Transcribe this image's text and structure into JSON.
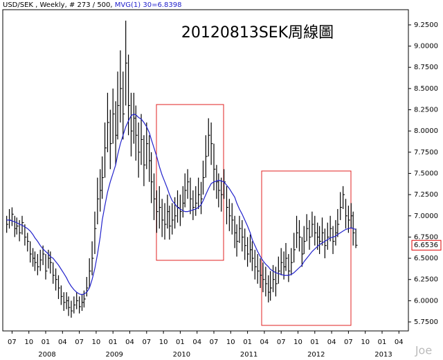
{
  "header": {
    "symbol_text": "USD/SEK , Weekly, # 273 / 500,",
    "ma_text": "MVG(1) 30=6.8398",
    "ma_color": "#2222cc"
  },
  "watermark": "Joe",
  "chart_data": {
    "type": "ohlc",
    "title": "20120813SEK周線圖",
    "x": [
      2007.42,
      2007.46,
      2007.5,
      2007.54,
      2007.57,
      2007.61,
      2007.65,
      2007.69,
      2007.73,
      2007.77,
      2007.81,
      2007.84,
      2007.88,
      2007.92,
      2007.96,
      2008.0,
      2008.04,
      2008.07,
      2008.11,
      2008.15,
      2008.19,
      2008.23,
      2008.27,
      2008.31,
      2008.34,
      2008.38,
      2008.42,
      2008.46,
      2008.5,
      2008.54,
      2008.57,
      2008.61,
      2008.65,
      2008.69,
      2008.73,
      2008.77,
      2008.81,
      2008.84,
      2008.88,
      2008.92,
      2008.96,
      2009.0,
      2009.04,
      2009.07,
      2009.11,
      2009.15,
      2009.19,
      2009.23,
      2009.27,
      2009.31,
      2009.34,
      2009.38,
      2009.42,
      2009.46,
      2009.5,
      2009.54,
      2009.57,
      2009.61,
      2009.65,
      2009.69,
      2009.73,
      2009.77,
      2009.81,
      2009.84,
      2009.88,
      2009.92,
      2009.96,
      2010.0,
      2010.04,
      2010.07,
      2010.11,
      2010.15,
      2010.19,
      2010.23,
      2010.27,
      2010.31,
      2010.34,
      2010.38,
      2010.42,
      2010.46,
      2010.5,
      2010.54,
      2010.57,
      2010.61,
      2010.65,
      2010.69,
      2010.73,
      2010.77,
      2010.81,
      2010.84,
      2010.88,
      2010.92,
      2010.96,
      2011.0,
      2011.04,
      2011.07,
      2011.11,
      2011.15,
      2011.19,
      2011.23,
      2011.27,
      2011.31,
      2011.34,
      2011.38,
      2011.42,
      2011.46,
      2011.5,
      2011.54,
      2011.57,
      2011.61,
      2011.65,
      2011.69,
      2011.73,
      2011.77,
      2011.81,
      2011.84,
      2011.88,
      2011.92,
      2011.96,
      2012.0,
      2012.04,
      2012.07,
      2012.11,
      2012.15,
      2012.19,
      2012.23,
      2012.27,
      2012.31,
      2012.34,
      2012.38,
      2012.42,
      2012.46,
      2012.5,
      2012.54,
      2012.57,
      2012.61
    ],
    "high": [
      7.0,
      7.08,
      7.1,
      7.0,
      6.98,
      6.95,
      7.0,
      6.9,
      6.8,
      6.7,
      6.62,
      6.58,
      6.55,
      6.6,
      6.65,
      6.55,
      6.6,
      6.58,
      6.45,
      6.38,
      6.3,
      6.18,
      6.1,
      6.1,
      6.05,
      6.0,
      6.05,
      6.1,
      6.05,
      6.08,
      6.12,
      6.28,
      6.5,
      6.7,
      7.05,
      7.45,
      7.55,
      7.7,
      8.1,
      8.45,
      8.25,
      8.5,
      8.35,
      8.7,
      8.95,
      8.7,
      9.3,
      8.9,
      8.45,
      8.45,
      8.3,
      8.1,
      8.2,
      7.95,
      8.1,
      7.95,
      7.75,
      7.5,
      7.3,
      7.35,
      7.2,
      7.15,
      7.25,
      7.12,
      7.15,
      7.22,
      7.3,
      7.25,
      7.35,
      7.5,
      7.55,
      7.45,
      7.3,
      7.35,
      7.45,
      7.4,
      7.65,
      7.95,
      8.15,
      8.1,
      7.85,
      7.6,
      7.5,
      7.45,
      7.55,
      7.35,
      7.2,
      7.15,
      7.0,
      6.9,
      7.0,
      6.95,
      6.85,
      6.75,
      6.78,
      6.7,
      6.6,
      6.55,
      6.5,
      6.45,
      6.4,
      6.3,
      6.35,
      6.42,
      6.4,
      6.52,
      6.62,
      6.58,
      6.68,
      6.55,
      6.62,
      6.8,
      7.0,
      6.95,
      6.75,
      6.88,
      7.02,
      6.95,
      7.05,
      7.0,
      6.92,
      6.88,
      6.98,
      6.85,
      6.92,
      7.0,
      6.88,
      6.95,
      7.08,
      7.28,
      7.35,
      7.2,
      7.12,
      7.15,
      7.05,
      6.85
    ],
    "low": [
      6.8,
      6.85,
      6.88,
      6.75,
      6.78,
      6.7,
      6.78,
      6.65,
      6.58,
      6.45,
      6.4,
      6.35,
      6.3,
      6.35,
      6.42,
      6.25,
      6.38,
      6.32,
      6.2,
      6.12,
      6.02,
      5.95,
      5.88,
      5.9,
      5.82,
      5.8,
      5.85,
      5.9,
      5.85,
      5.88,
      5.92,
      6.05,
      6.15,
      6.3,
      6.55,
      6.9,
      7.05,
      7.2,
      7.45,
      7.75,
      7.55,
      7.85,
      7.6,
      7.9,
      8.1,
      7.9,
      8.3,
      7.95,
      7.7,
      7.85,
      7.65,
      7.45,
      7.6,
      7.35,
      7.55,
      7.4,
      7.15,
      6.95,
      6.8,
      6.85,
      6.75,
      6.72,
      6.85,
      6.72,
      6.78,
      6.85,
      6.92,
      6.88,
      6.98,
      7.1,
      7.2,
      7.02,
      6.95,
      7.0,
      7.08,
      7.02,
      7.25,
      7.45,
      7.7,
      7.6,
      7.3,
      7.2,
      7.1,
      7.05,
      7.2,
      6.9,
      6.82,
      6.78,
      6.62,
      6.52,
      6.68,
      6.58,
      6.48,
      6.4,
      6.45,
      6.35,
      6.25,
      6.2,
      6.15,
      6.1,
      6.05,
      5.98,
      6.0,
      6.1,
      6.05,
      6.2,
      6.3,
      6.25,
      6.35,
      6.22,
      6.3,
      6.45,
      6.62,
      6.58,
      6.4,
      6.55,
      6.7,
      6.6,
      6.75,
      6.65,
      6.6,
      6.55,
      6.65,
      6.5,
      6.6,
      6.7,
      6.55,
      6.65,
      6.75,
      6.95,
      7.08,
      6.85,
      6.8,
      6.85,
      6.65,
      6.62
    ],
    "close": [
      6.9,
      6.95,
      7.02,
      6.85,
      6.88,
      6.8,
      6.92,
      6.75,
      6.7,
      6.55,
      6.5,
      6.45,
      6.4,
      6.48,
      6.55,
      6.35,
      6.5,
      6.45,
      6.3,
      6.25,
      6.15,
      6.05,
      5.98,
      6.0,
      5.92,
      5.88,
      5.95,
      6.0,
      5.93,
      5.98,
      6.02,
      6.15,
      6.35,
      6.5,
      6.85,
      7.2,
      7.3,
      7.45,
      7.8,
      8.1,
      7.85,
      8.2,
      7.95,
      8.3,
      8.5,
      8.2,
      8.8,
      8.3,
      8.0,
      8.15,
      7.95,
      7.75,
      7.9,
      7.6,
      7.85,
      7.65,
      7.4,
      7.2,
      7.05,
      7.1,
      6.95,
      6.9,
      7.05,
      6.88,
      6.95,
      7.0,
      7.1,
      7.05,
      7.15,
      7.3,
      7.4,
      7.2,
      7.1,
      7.15,
      7.25,
      7.2,
      7.45,
      7.7,
      7.95,
      7.85,
      7.55,
      7.4,
      7.3,
      7.25,
      7.4,
      7.1,
      7.0,
      6.95,
      6.8,
      6.7,
      6.85,
      6.75,
      6.65,
      6.55,
      6.6,
      6.5,
      6.4,
      6.35,
      6.3,
      6.25,
      6.2,
      6.1,
      6.15,
      6.25,
      6.2,
      6.35,
      6.45,
      6.4,
      6.5,
      6.35,
      6.45,
      6.6,
      6.8,
      6.75,
      6.55,
      6.7,
      6.85,
      6.75,
      6.9,
      6.8,
      6.75,
      6.7,
      6.8,
      6.65,
      6.75,
      6.85,
      6.7,
      6.8,
      6.9,
      7.1,
      7.25,
      7.0,
      6.95,
      7.0,
      6.8,
      6.6536
    ],
    "bar_color": "#000000",
    "last_color": "#dd0000",
    "ma": {
      "color": "#2222cc",
      "values": [
        6.95,
        6.95,
        6.94,
        6.93,
        6.92,
        6.9,
        6.89,
        6.87,
        6.85,
        6.82,
        6.78,
        6.74,
        6.7,
        6.65,
        6.61,
        6.58,
        6.55,
        6.52,
        6.5,
        6.46,
        6.42,
        6.37,
        6.32,
        6.27,
        6.22,
        6.17,
        6.13,
        6.1,
        6.08,
        6.07,
        6.08,
        6.1,
        6.15,
        6.25,
        6.38,
        6.55,
        6.75,
        6.95,
        7.12,
        7.28,
        7.4,
        7.5,
        7.6,
        7.72,
        7.85,
        7.95,
        8.05,
        8.12,
        8.18,
        8.2,
        8.19,
        8.16,
        8.14,
        8.1,
        8.05,
        7.98,
        7.9,
        7.8,
        7.7,
        7.58,
        7.48,
        7.4,
        7.32,
        7.25,
        7.18,
        7.14,
        7.1,
        7.08,
        7.06,
        7.05,
        7.05,
        7.06,
        7.07,
        7.08,
        7.1,
        7.13,
        7.18,
        7.25,
        7.32,
        7.38,
        7.4,
        7.41,
        7.42,
        7.41,
        7.4,
        7.36,
        7.32,
        7.27,
        7.22,
        7.15,
        7.08,
        7.02,
        6.95,
        6.88,
        6.8,
        6.72,
        6.65,
        6.58,
        6.52,
        6.47,
        6.43,
        6.4,
        6.37,
        6.35,
        6.33,
        6.32,
        6.31,
        6.3,
        6.3,
        6.3,
        6.31,
        6.33,
        6.36,
        6.39,
        6.42,
        6.46,
        6.5,
        6.54,
        6.58,
        6.61,
        6.64,
        6.66,
        6.68,
        6.7,
        6.72,
        6.74,
        6.75,
        6.76,
        6.78,
        6.8,
        6.82,
        6.84,
        6.85,
        6.86,
        6.85,
        6.8398
      ]
    },
    "xlim": [
      2007.362,
      2013.391
    ],
    "ylim": [
      5.644,
      9.429
    ],
    "yticks": [
      {
        "value": 5.75,
        "label": "5.7500"
      },
      {
        "value": 6.0,
        "label": "6.0000"
      },
      {
        "value": 6.25,
        "label": "6.2500"
      },
      {
        "value": 6.5,
        "label": "6.5000"
      },
      {
        "value": 6.75,
        "label": "6.7500"
      },
      {
        "value": 7.0,
        "label": "7.0000"
      },
      {
        "value": 7.25,
        "label": "7.2500"
      },
      {
        "value": 7.5,
        "label": "7.5000"
      },
      {
        "value": 7.75,
        "label": "7.7500"
      },
      {
        "value": 8.0,
        "label": "8.0000"
      },
      {
        "value": 8.25,
        "label": "8.2500"
      },
      {
        "value": 8.5,
        "label": "8.5000"
      },
      {
        "value": 8.75,
        "label": "8.7500"
      },
      {
        "value": 9.0,
        "label": "9.0000"
      },
      {
        "value": 9.25,
        "label": "9.2500"
      }
    ],
    "xticks": [
      {
        "value": 2007.5,
        "label": "07"
      },
      {
        "value": 2007.75,
        "label": "10"
      },
      {
        "value": 2008.0,
        "label": "01"
      },
      {
        "value": 2008.25,
        "label": "04"
      },
      {
        "value": 2008.5,
        "label": "07"
      },
      {
        "value": 2008.75,
        "label": "10"
      },
      {
        "value": 2009.0,
        "label": "01"
      },
      {
        "value": 2009.25,
        "label": "04"
      },
      {
        "value": 2009.5,
        "label": "07"
      },
      {
        "value": 2009.75,
        "label": "10"
      },
      {
        "value": 2010.0,
        "label": "01"
      },
      {
        "value": 2010.25,
        "label": "04"
      },
      {
        "value": 2010.5,
        "label": "07"
      },
      {
        "value": 2010.75,
        "label": "10"
      },
      {
        "value": 2011.0,
        "label": "01"
      },
      {
        "value": 2011.25,
        "label": "04"
      },
      {
        "value": 2011.5,
        "label": "07"
      },
      {
        "value": 2011.75,
        "label": "10"
      },
      {
        "value": 2012.0,
        "label": "01"
      },
      {
        "value": 2012.25,
        "label": "04"
      },
      {
        "value": 2012.5,
        "label": "07"
      },
      {
        "value": 2012.75,
        "label": "10"
      },
      {
        "value": 2013.0,
        "label": "01"
      },
      {
        "value": 2013.25,
        "label": "04"
      }
    ],
    "year_ticks": [
      2008,
      2009,
      2010,
      2011,
      2012,
      2013
    ]
  }
}
